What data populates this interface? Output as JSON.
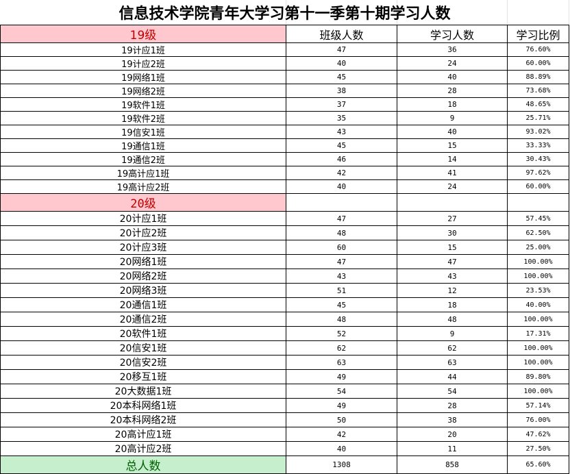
{
  "title": "信息技术学院青年大学习第十一季第十期学习人数",
  "headers": {
    "grade19": "19级",
    "class_size": "班级人数",
    "learners": "学习人数",
    "ratio": "学习比例"
  },
  "grade19_rows": [
    [
      "19计应1班",
      "47",
      "36",
      "76.60%"
    ],
    [
      "19计应2班",
      "40",
      "24",
      "60.00%"
    ],
    [
      "19网络1班",
      "45",
      "40",
      "88.89%"
    ],
    [
      "19网络2班",
      "38",
      "28",
      "73.68%"
    ],
    [
      "19软件1班",
      "37",
      "18",
      "48.65%"
    ],
    [
      "19软件2班",
      "35",
      "9",
      "25.71%"
    ],
    [
      "19信安1班",
      "43",
      "40",
      "93.02%"
    ],
    [
      "19通信1班",
      "45",
      "15",
      "33.33%"
    ],
    [
      "19通信2班",
      "46",
      "14",
      "30.43%"
    ],
    [
      "19高计应1班",
      "42",
      "41",
      "97.62%"
    ],
    [
      "19高计应2班",
      "40",
      "24",
      "60.00%"
    ]
  ],
  "grade20_label": "20级",
  "grade20_rows": [
    [
      "20计应1班",
      "47",
      "27",
      "57.45%"
    ],
    [
      "20计应2班",
      "48",
      "30",
      "62.50%"
    ],
    [
      "20计应3班",
      "60",
      "15",
      "25.00%"
    ],
    [
      "20网络1班",
      "47",
      "47",
      "100.00%"
    ],
    [
      "20网络2班",
      "43",
      "43",
      "100.00%"
    ],
    [
      "20网络3班",
      "51",
      "12",
      "23.53%"
    ],
    [
      "20通信1班",
      "45",
      "18",
      "40.00%"
    ],
    [
      "20通信2班",
      "48",
      "48",
      "100.00%"
    ],
    [
      "20软件1班",
      "52",
      "9",
      "17.31%"
    ],
    [
      "20信安1班",
      "62",
      "62",
      "100.00%"
    ],
    [
      "20信安2班",
      "63",
      "63",
      "100.00%"
    ],
    [
      "20移互1班",
      "49",
      "44",
      "89.80%"
    ],
    [
      "20大数据1班",
      "54",
      "54",
      "100.00%"
    ],
    [
      "20本科网络1班",
      "49",
      "28",
      "57.14%"
    ],
    [
      "20本科网络2班",
      "50",
      "38",
      "76.00%"
    ],
    [
      "20高计应1班",
      "42",
      "20",
      "47.62%"
    ],
    [
      "20高计应2班",
      "40",
      "11",
      "27.50%"
    ]
  ],
  "total": {
    "label": "总人数",
    "class_size": "1308",
    "learners": "858",
    "ratio": "65.60%"
  },
  "colors": {
    "grade_fill": "#ffc7ce",
    "grade_text": "#c00000",
    "total_fill": "#c6efce",
    "total_text": "#006100"
  }
}
